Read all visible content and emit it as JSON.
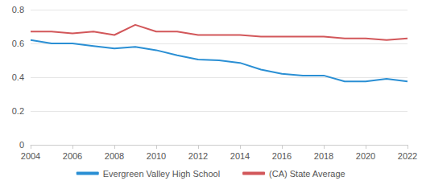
{
  "chart_data": {
    "type": "line",
    "x": [
      2004,
      2005,
      2006,
      2007,
      2008,
      2009,
      2010,
      2011,
      2012,
      2013,
      2014,
      2015,
      2016,
      2017,
      2018,
      2019,
      2020,
      2021,
      2022
    ],
    "series": [
      {
        "name": "Evergreen Valley High School",
        "color": "#2a8fd4",
        "values": [
          0.62,
          0.6,
          0.6,
          0.585,
          0.57,
          0.58,
          0.56,
          0.53,
          0.505,
          0.5,
          0.485,
          0.445,
          0.42,
          0.41,
          0.41,
          0.375,
          0.375,
          0.39,
          0.375
        ]
      },
      {
        "name": "(CA) State Average",
        "color": "#d2575a",
        "values": [
          0.67,
          0.67,
          0.66,
          0.67,
          0.65,
          0.71,
          0.67,
          0.67,
          0.65,
          0.65,
          0.65,
          0.64,
          0.64,
          0.64,
          0.64,
          0.63,
          0.63,
          0.62,
          0.63
        ]
      }
    ],
    "xlim": [
      2004,
      2022
    ],
    "xticks": [
      2004,
      2006,
      2008,
      2010,
      2012,
      2014,
      2016,
      2018,
      2020,
      2022
    ],
    "ylim": [
      0,
      0.8
    ],
    "yticks": [
      0,
      0.2,
      0.4,
      0.6,
      0.8
    ],
    "grid": true,
    "legend": "bottom"
  }
}
